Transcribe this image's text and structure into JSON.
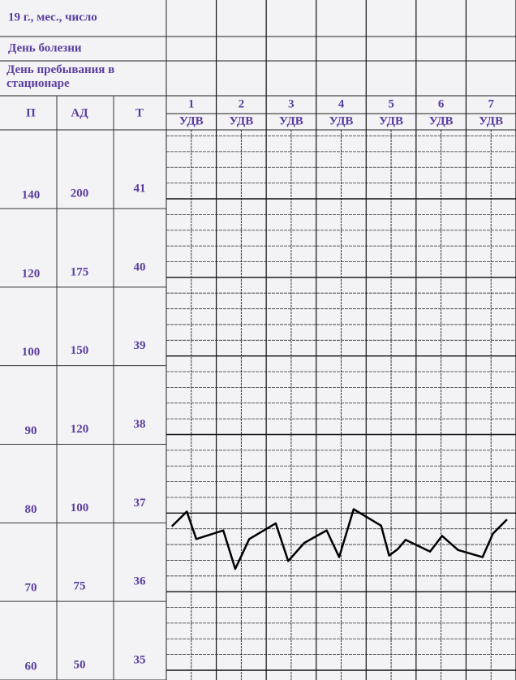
{
  "header": {
    "date_label": "19   г., мес., число",
    "illness_day_label": "День болезни",
    "hospital_day_label": "День пребывания в стационаре"
  },
  "chart_data": {
    "type": "line",
    "scale_headers": [
      "П",
      "АД",
      "Т"
    ],
    "pulse_ticks": [
      140,
      120,
      100,
      90,
      80,
      70,
      60
    ],
    "bp_ticks": [
      200,
      175,
      150,
      120,
      100,
      75,
      50
    ],
    "yticks": [
      41,
      40,
      39,
      38,
      37,
      36,
      35
    ],
    "ylim": [
      35,
      41
    ],
    "xticks": [
      1,
      2,
      3,
      4,
      5,
      6,
      7
    ],
    "xlim": [
      0.5,
      7.5
    ],
    "x_sublabel": "УДВ",
    "x": [
      0.61,
      0.91,
      1.1,
      1.64,
      1.88,
      2.16,
      2.69,
      2.94,
      3.26,
      3.71,
      3.96,
      4.25,
      4.8,
      4.96,
      5.13,
      5.29,
      5.78,
      6.02,
      6.34,
      6.83,
      7.04,
      7.32
    ],
    "values": [
      36.83,
      37.02,
      36.67,
      36.78,
      36.29,
      36.67,
      36.87,
      36.39,
      36.62,
      36.78,
      36.44,
      37.05,
      36.84,
      36.46,
      36.54,
      36.66,
      36.51,
      36.71,
      36.53,
      36.44,
      36.74,
      36.92
    ],
    "color": "#000000",
    "grid": true
  }
}
